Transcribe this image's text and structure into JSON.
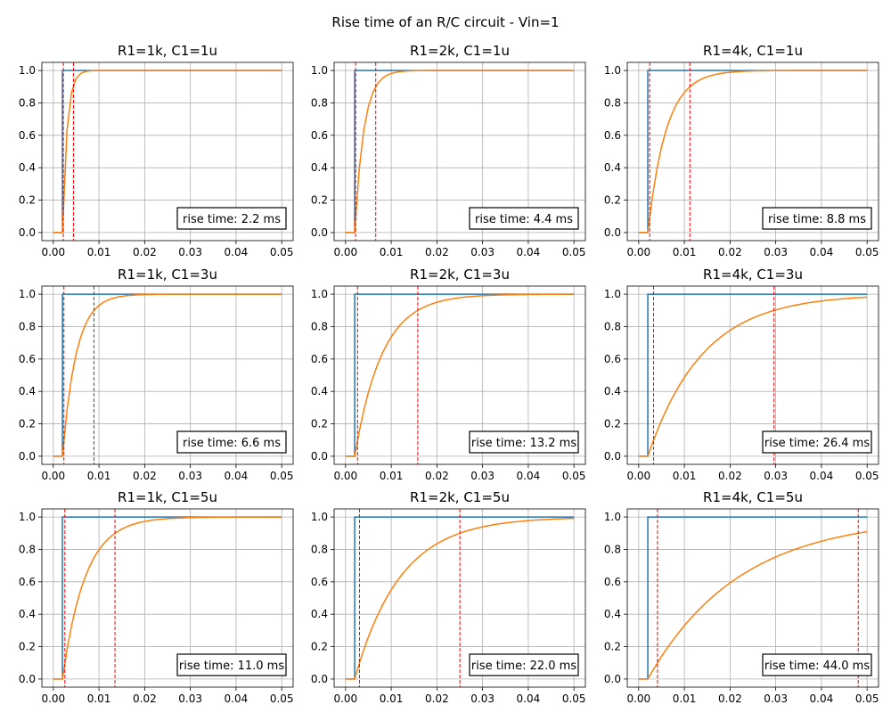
{
  "figure": {
    "title": "Rise time of an R/C circuit - Vin=1"
  },
  "colors": {
    "input": "#1f77b4",
    "output": "#ff7f0e",
    "marker": "#ff0000",
    "grid": "#b0b0b0",
    "axes": "#000000"
  },
  "chart_data": [
    {
      "type": "line",
      "title": "R1=1k, C1=1u",
      "tau_s": 0.001,
      "step_t": 0.002,
      "rise_time_label": "rise time: 2.2 ms",
      "markers_x": [
        0.00221,
        0.00441
      ],
      "xlim": [
        0,
        0.05
      ],
      "ylim": [
        0,
        1
      ],
      "xticks": [
        "0.00",
        "0.01",
        "0.02",
        "0.03",
        "0.04",
        "0.05"
      ],
      "yticks": [
        "0.0",
        "0.2",
        "0.4",
        "0.6",
        "0.8",
        "1.0"
      ],
      "series": [
        {
          "input_step": {
            "x": [
              0,
              0.002,
              0.002,
              0.05
            ],
            "y": [
              0,
              0,
              1,
              1
            ]
          }
        },
        {
          "output": "V=1-exp(-(t-0.002)/tau) for t>0.002, else 0"
        }
      ],
      "xlabel": "",
      "ylabel": ""
    },
    {
      "type": "line",
      "title": "R1=2k, C1=1u",
      "tau_s": 0.002,
      "step_t": 0.002,
      "rise_time_label": "rise time: 4.4 ms",
      "markers_x": [
        0.00221,
        0.00661
      ],
      "xlim": [
        0,
        0.05
      ],
      "ylim": [
        0,
        1
      ],
      "xticks": [
        "0.00",
        "0.01",
        "0.02",
        "0.03",
        "0.04",
        "0.05"
      ],
      "yticks": [
        "0.0",
        "0.2",
        "0.4",
        "0.6",
        "0.8",
        "1.0"
      ],
      "xlabel": "",
      "ylabel": ""
    },
    {
      "type": "line",
      "title": "R1=4k, C1=1u",
      "tau_s": 0.004,
      "step_t": 0.002,
      "rise_time_label": "rise time: 8.8 ms",
      "markers_x": [
        0.00242,
        0.01121
      ],
      "xlim": [
        0,
        0.05
      ],
      "ylim": [
        0,
        1
      ],
      "xticks": [
        "0.00",
        "0.01",
        "0.02",
        "0.03",
        "0.04",
        "0.05"
      ],
      "yticks": [
        "0.0",
        "0.2",
        "0.4",
        "0.6",
        "0.8",
        "1.0"
      ],
      "xlabel": "",
      "ylabel": ""
    },
    {
      "type": "line",
      "title": "R1=1k, C1=3u",
      "tau_s": 0.003,
      "step_t": 0.002,
      "rise_time_label": "rise time: 6.6 ms",
      "markers_x": [
        0.00232,
        0.00891
      ],
      "xlim": [
        0,
        0.05
      ],
      "ylim": [
        0,
        1
      ],
      "xticks": [
        "0.00",
        "0.01",
        "0.02",
        "0.03",
        "0.04",
        "0.05"
      ],
      "yticks": [
        "0.0",
        "0.2",
        "0.4",
        "0.6",
        "0.8",
        "1.0"
      ],
      "xlabel": "",
      "ylabel": ""
    },
    {
      "type": "line",
      "title": "R1=2k, C1=3u",
      "tau_s": 0.006,
      "step_t": 0.002,
      "rise_time_label": "rise time: 13.2 ms",
      "markers_x": [
        0.00263,
        0.01582
      ],
      "xlim": [
        0,
        0.05
      ],
      "ylim": [
        0,
        1
      ],
      "xticks": [
        "0.00",
        "0.01",
        "0.02",
        "0.03",
        "0.04",
        "0.05"
      ],
      "yticks": [
        "0.0",
        "0.2",
        "0.4",
        "0.6",
        "0.8",
        "1.0"
      ],
      "xlabel": "",
      "ylabel": ""
    },
    {
      "type": "line",
      "title": "R1=4k, C1=3u",
      "tau_s": 0.012,
      "step_t": 0.002,
      "rise_time_label": "rise time: 26.4 ms",
      "markers_x": [
        0.00326,
        0.02963
      ],
      "xlim": [
        0,
        0.05
      ],
      "ylim": [
        0,
        1
      ],
      "xticks": [
        "0.00",
        "0.01",
        "0.02",
        "0.03",
        "0.04",
        "0.05"
      ],
      "yticks": [
        "0.0",
        "0.2",
        "0.4",
        "0.6",
        "0.8",
        "1.0"
      ],
      "xlabel": "",
      "ylabel": ""
    },
    {
      "type": "line",
      "title": "R1=1k, C1=5u",
      "tau_s": 0.005,
      "step_t": 0.002,
      "rise_time_label": "rise time: 11.0 ms",
      "markers_x": [
        0.00253,
        0.01351
      ],
      "xlim": [
        0,
        0.05
      ],
      "ylim": [
        0,
        1
      ],
      "xticks": [
        "0.00",
        "0.01",
        "0.02",
        "0.03",
        "0.04",
        "0.05"
      ],
      "yticks": [
        "0.0",
        "0.2",
        "0.4",
        "0.6",
        "0.8",
        "1.0"
      ],
      "xlabel": "",
      "ylabel": ""
    },
    {
      "type": "line",
      "title": "R1=2k, C1=5u",
      "tau_s": 0.01,
      "step_t": 0.002,
      "rise_time_label": "rise time: 22.0 ms",
      "markers_x": [
        0.00305,
        0.02503
      ],
      "xlim": [
        0,
        0.05
      ],
      "ylim": [
        0,
        1
      ],
      "xticks": [
        "0.00",
        "0.01",
        "0.02",
        "0.03",
        "0.04",
        "0.05"
      ],
      "yticks": [
        "0.0",
        "0.2",
        "0.4",
        "0.6",
        "0.8",
        "1.0"
      ],
      "xlabel": "",
      "ylabel": ""
    },
    {
      "type": "line",
      "title": "R1=4k, C1=5u",
      "tau_s": 0.02,
      "step_t": 0.002,
      "rise_time_label": "rise time: 44.0 ms",
      "markers_x": [
        0.00411,
        0.04806
      ],
      "xlim": [
        0,
        0.05
      ],
      "ylim": [
        0,
        1
      ],
      "xticks": [
        "0.00",
        "0.01",
        "0.02",
        "0.03",
        "0.04",
        "0.05"
      ],
      "yticks": [
        "0.0",
        "0.2",
        "0.4",
        "0.6",
        "0.8",
        "1.0"
      ],
      "xlabel": "",
      "ylabel": ""
    }
  ]
}
